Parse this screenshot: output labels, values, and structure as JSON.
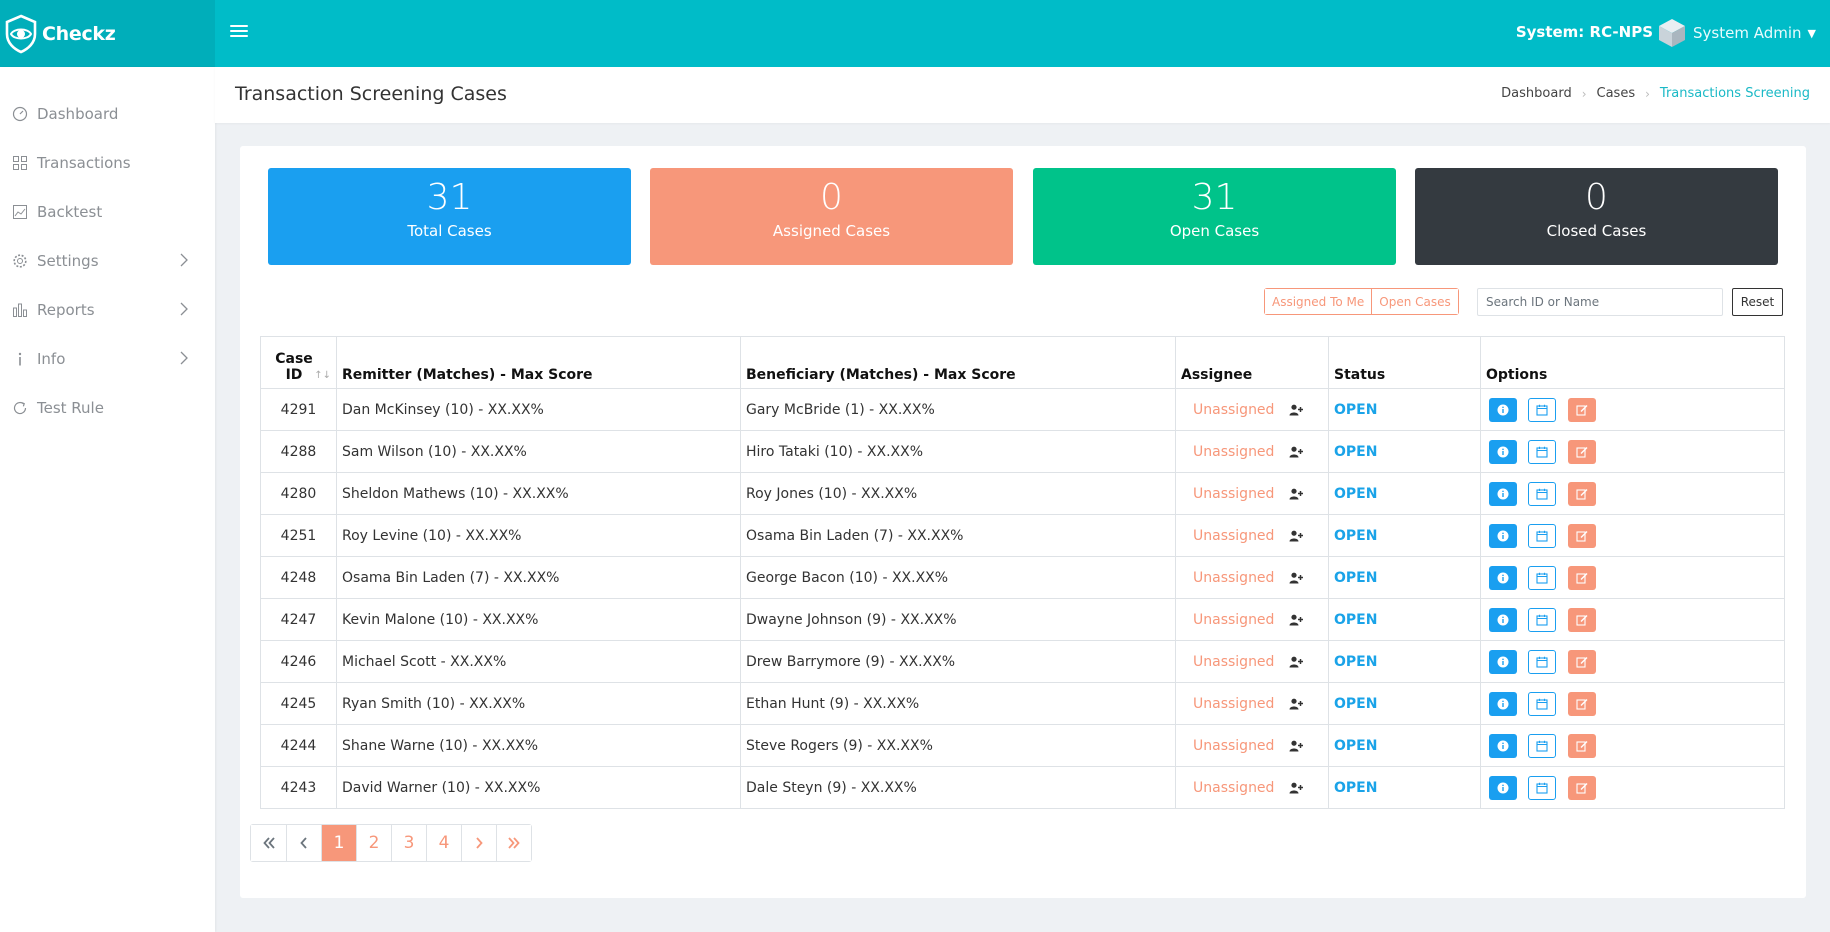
{
  "brand": {
    "name": "Checkz"
  },
  "header": {
    "system_label": "System: RC-NPS",
    "user_name": "System Admin"
  },
  "sidebar": {
    "items": [
      {
        "label": "Dashboard",
        "icon": "dashboard-gauge-icon",
        "has_arrow": false
      },
      {
        "label": "Transactions",
        "icon": "grid-icon",
        "has_arrow": false
      },
      {
        "label": "Backtest",
        "icon": "image-chart-icon",
        "has_arrow": false
      },
      {
        "label": "Settings",
        "icon": "gear-icon",
        "has_arrow": true
      },
      {
        "label": "Reports",
        "icon": "bar-chart-icon",
        "has_arrow": true
      },
      {
        "label": "Info",
        "icon": "info-icon",
        "has_arrow": true
      },
      {
        "label": "Test Rule",
        "icon": "refresh-icon",
        "has_arrow": false
      }
    ]
  },
  "page": {
    "title": "Transaction Screening Cases",
    "breadcrumb": [
      "Dashboard",
      "Cases",
      "Transactions Screening"
    ]
  },
  "stats": [
    {
      "value": "31",
      "label": "Total Cases",
      "color": "#1a9ff0"
    },
    {
      "value": "0",
      "label": "Assigned Cases",
      "color": "#f7977a"
    },
    {
      "value": "31",
      "label": "Open Cases",
      "color": "#00c38a"
    },
    {
      "value": "0",
      "label": "Closed Cases",
      "color": "#343a40"
    }
  ],
  "filters": {
    "assigned_to_me": "Assigned To Me",
    "open_cases": "Open Cases",
    "search_placeholder": "Search ID or Name",
    "reset": "Reset"
  },
  "table": {
    "columns": {
      "case_id": "Case ID",
      "remitter": "Remitter (Matches) - Max Score",
      "beneficiary": "Beneficiary (Matches) - Max Score",
      "assignee": "Assignee",
      "status": "Status",
      "options": "Options"
    },
    "rows": [
      {
        "id": "4291",
        "remitter": "Dan McKinsey (10) - XX.XX%",
        "beneficiary": "Gary McBride (1) - XX.XX%",
        "assignee": "Unassigned",
        "status": "OPEN"
      },
      {
        "id": "4288",
        "remitter": "Sam Wilson (10) - XX.XX%",
        "beneficiary": "Hiro Tataki (10) - XX.XX%",
        "assignee": "Unassigned",
        "status": "OPEN"
      },
      {
        "id": "4280",
        "remitter": "Sheldon Mathews (10) - XX.XX%",
        "beneficiary": "Roy Jones (10) - XX.XX%",
        "assignee": "Unassigned",
        "status": "OPEN"
      },
      {
        "id": "4251",
        "remitter": "Roy Levine (10) - XX.XX%",
        "beneficiary": "Osama Bin Laden (7) - XX.XX%",
        "assignee": "Unassigned",
        "status": "OPEN"
      },
      {
        "id": "4248",
        "remitter": "Osama Bin Laden (7) - XX.XX%",
        "beneficiary": "George Bacon (10) - XX.XX%",
        "assignee": "Unassigned",
        "status": "OPEN"
      },
      {
        "id": "4247",
        "remitter": "Kevin Malone (10) - XX.XX%",
        "beneficiary": "Dwayne Johnson (9) - XX.XX%",
        "assignee": "Unassigned",
        "status": "OPEN"
      },
      {
        "id": "4246",
        "remitter": "Michael Scott - XX.XX%",
        "beneficiary": "Drew Barrymore (9) - XX.XX%",
        "assignee": "Unassigned",
        "status": "OPEN"
      },
      {
        "id": "4245",
        "remitter": "Ryan Smith (10) - XX.XX%",
        "beneficiary": "Ethan Hunt (9) - XX.XX%",
        "assignee": "Unassigned",
        "status": "OPEN"
      },
      {
        "id": "4244",
        "remitter": "Shane Warne (10) - XX.XX%",
        "beneficiary": "Steve Rogers (9) - XX.XX%",
        "assignee": "Unassigned",
        "status": "OPEN"
      },
      {
        "id": "4243",
        "remitter": "David Warner (10) - XX.XX%",
        "beneficiary": "Dale Steyn (9) - XX.XX%",
        "assignee": "Unassigned",
        "status": "OPEN"
      }
    ]
  },
  "pagination": {
    "pages": [
      "1",
      "2",
      "3",
      "4"
    ],
    "active_page": "1"
  }
}
